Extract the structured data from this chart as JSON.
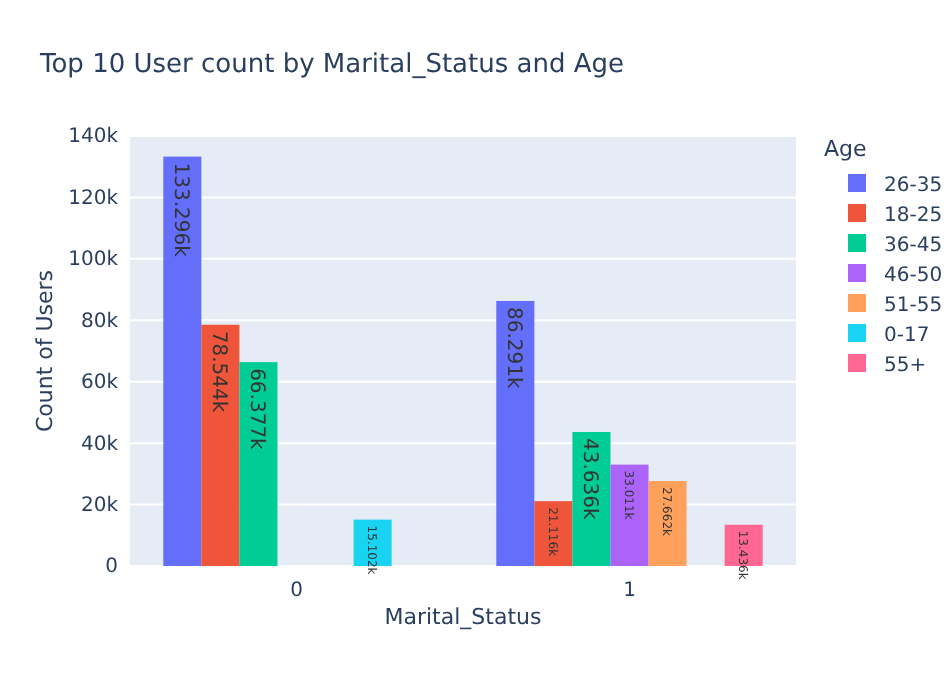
{
  "chart_data": {
    "type": "bar",
    "title": "Top 10 User count by Marital_Status and Age",
    "xlabel": "Marital_Status",
    "ylabel": "Count of Users",
    "legend_title": "Age",
    "categories": [
      "0",
      "1"
    ],
    "series": [
      {
        "name": "26-35",
        "color": "#636efa",
        "values": [
          133296,
          86291
        ],
        "value_labels": [
          "133.296k",
          "86.291k"
        ]
      },
      {
        "name": "18-25",
        "color": "#ef553b",
        "values": [
          78544,
          21116
        ],
        "value_labels": [
          "78.544k",
          "21.116k"
        ]
      },
      {
        "name": "36-45",
        "color": "#00cc96",
        "values": [
          66377,
          43636
        ],
        "value_labels": [
          "66.377k",
          "43.636k"
        ]
      },
      {
        "name": "46-50",
        "color": "#ab63fa",
        "values": [
          null,
          33011
        ],
        "value_labels": [
          null,
          "33.011k"
        ]
      },
      {
        "name": "51-55",
        "color": "#ffa15a",
        "values": [
          null,
          27662
        ],
        "value_labels": [
          null,
          "27.662k"
        ]
      },
      {
        "name": "0-17",
        "color": "#19d3f3",
        "values": [
          15102,
          null
        ],
        "value_labels": [
          "15.102k",
          null
        ]
      },
      {
        "name": "55+",
        "color": "#ff6692",
        "values": [
          null,
          13436
        ],
        "value_labels": [
          null,
          "13.436k"
        ]
      }
    ],
    "ylim": [
      0,
      140000
    ],
    "yticks": [
      0,
      {
        "value": 20000,
        "label": "20k"
      },
      {
        "value": 40000,
        "label": "40k"
      },
      {
        "value": 60000,
        "label": "60k"
      },
      {
        "value": 80000,
        "label": "80k"
      },
      {
        "value": 100000,
        "label": "100k"
      },
      {
        "value": 120000,
        "label": "120k"
      },
      {
        "value": 140000,
        "label": "140k"
      }
    ],
    "grid": "y",
    "legend": "top right"
  }
}
